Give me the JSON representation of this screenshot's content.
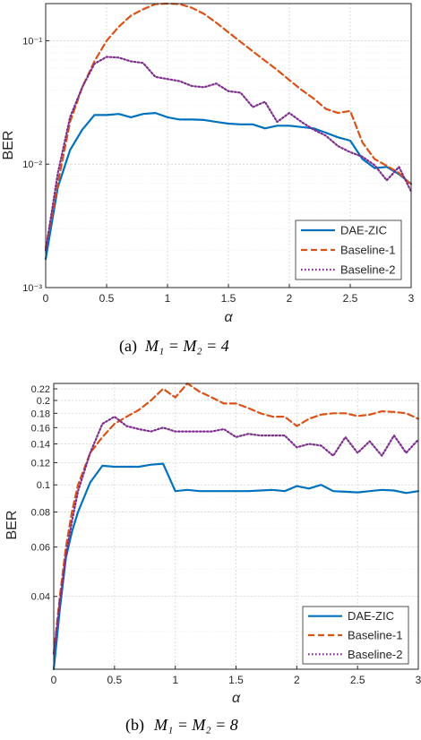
{
  "chart_data": [
    {
      "type": "line",
      "caption_prefix": "(a)",
      "caption_math": "M₁ = M₂ = 4",
      "xlabel": "α",
      "ylabel": "BER",
      "xlim": [
        0,
        3
      ],
      "ylim": [
        0.001,
        0.2
      ],
      "yscale": "log",
      "grid": true,
      "legend_position": "bottom-right",
      "xticks": [
        0,
        0.5,
        1,
        1.5,
        2,
        2.5,
        3
      ],
      "xtick_labels": [
        "0",
        "0.5",
        "1",
        "1.5",
        "2",
        "2.5",
        "3"
      ],
      "yticks": [
        0.001,
        0.01,
        0.1
      ],
      "ytick_labels": [
        "10⁻³",
        "10⁻²",
        "10⁻¹"
      ],
      "x": [
        0,
        0.1,
        0.2,
        0.3,
        0.4,
        0.5,
        0.6,
        0.7,
        0.8,
        0.9,
        1.0,
        1.1,
        1.2,
        1.3,
        1.4,
        1.5,
        1.6,
        1.7,
        1.8,
        1.9,
        2.0,
        2.1,
        2.2,
        2.3,
        2.4,
        2.5,
        2.6,
        2.7,
        2.8,
        2.9,
        3.0
      ],
      "series": [
        {
          "name": "DAE-ZIC",
          "color": "#0072BD",
          "dash": "solid",
          "values": [
            0.0017,
            0.0065,
            0.013,
            0.019,
            0.025,
            0.025,
            0.0255,
            0.024,
            0.0255,
            0.026,
            0.024,
            0.023,
            0.023,
            0.0228,
            0.022,
            0.0213,
            0.021,
            0.021,
            0.0195,
            0.0205,
            0.0205,
            0.02,
            0.0195,
            0.018,
            0.0165,
            0.0155,
            0.011,
            0.0093,
            0.0095,
            0.0083,
            0.0069
          ]
        },
        {
          "name": "Baseline-1",
          "color": "#D95319",
          "dash": "dashed",
          "values": [
            0.0021,
            0.007,
            0.022,
            0.042,
            0.068,
            0.1,
            0.13,
            0.16,
            0.18,
            0.198,
            0.2,
            0.198,
            0.185,
            0.165,
            0.14,
            0.117,
            0.098,
            0.082,
            0.069,
            0.058,
            0.048,
            0.04,
            0.034,
            0.028,
            0.026,
            0.027,
            0.015,
            0.011,
            0.0097,
            0.0085,
            0.0068
          ]
        },
        {
          "name": "Baseline-2",
          "color": "#7E2F8E",
          "dash": "dotted",
          "values": [
            0.002,
            0.0085,
            0.024,
            0.042,
            0.065,
            0.074,
            0.073,
            0.068,
            0.066,
            0.051,
            0.049,
            0.047,
            0.043,
            0.042,
            0.045,
            0.039,
            0.038,
            0.029,
            0.032,
            0.022,
            0.026,
            0.022,
            0.019,
            0.017,
            0.014,
            0.0125,
            0.0115,
            0.0098,
            0.0074,
            0.0095,
            0.006
          ]
        }
      ]
    },
    {
      "type": "line",
      "caption_prefix": "(b)",
      "caption_math": "M₁ = M₂ = 8",
      "xlabel": "α",
      "ylabel": "BER",
      "xlim": [
        0,
        3
      ],
      "ylim": [
        0.022,
        0.23
      ],
      "yscale": "log",
      "grid": true,
      "legend_position": "bottom-right",
      "xticks": [
        0,
        0.5,
        1,
        1.5,
        2,
        2.5,
        3
      ],
      "xtick_labels": [
        "0",
        "0.5",
        "1",
        "1.5",
        "2",
        "2.5",
        "3"
      ],
      "yticks": [
        0.04,
        0.06,
        0.08,
        0.1,
        0.12,
        0.14,
        0.16,
        0.18,
        0.2,
        0.22
      ],
      "ytick_labels": [
        "0.04",
        "0.06",
        "0.08",
        "0.1",
        "0.12",
        "0.14",
        "0.16",
        "0.18",
        "0.2",
        "0.22"
      ],
      "x": [
        0,
        0.05,
        0.1,
        0.15,
        0.2,
        0.3,
        0.4,
        0.5,
        0.6,
        0.7,
        0.8,
        0.9,
        1.0,
        1.1,
        1.2,
        1.3,
        1.4,
        1.5,
        1.6,
        1.7,
        1.8,
        1.9,
        2.0,
        2.1,
        2.2,
        2.3,
        2.4,
        2.5,
        2.6,
        2.7,
        2.8,
        2.9,
        3.0
      ],
      "series": [
        {
          "name": "DAE-ZIC",
          "color": "#0072BD",
          "dash": "solid",
          "values": [
            0.022,
            0.036,
            0.055,
            0.068,
            0.08,
            0.102,
            0.117,
            0.116,
            0.116,
            0.116,
            0.118,
            0.119,
            0.095,
            0.096,
            0.095,
            0.095,
            0.095,
            0.095,
            0.095,
            0.0955,
            0.096,
            0.095,
            0.099,
            0.097,
            0.1,
            0.095,
            0.0945,
            0.094,
            0.095,
            0.096,
            0.0955,
            0.0935,
            0.095
          ]
        },
        {
          "name": "Baseline-1",
          "color": "#D95319",
          "dash": "dashed",
          "values": [
            0.025,
            0.04,
            0.06,
            0.08,
            0.1,
            0.13,
            0.148,
            0.165,
            0.175,
            0.185,
            0.2,
            0.22,
            0.205,
            0.23,
            0.215,
            0.205,
            0.195,
            0.195,
            0.188,
            0.18,
            0.175,
            0.175,
            0.162,
            0.172,
            0.178,
            0.18,
            0.18,
            0.176,
            0.178,
            0.183,
            0.182,
            0.18,
            0.172
          ]
        },
        {
          "name": "Baseline-2",
          "color": "#7E2F8E",
          "dash": "dotted",
          "values": [
            0.025,
            0.038,
            0.056,
            0.074,
            0.095,
            0.13,
            0.165,
            0.175,
            0.162,
            0.158,
            0.155,
            0.16,
            0.155,
            0.155,
            0.155,
            0.155,
            0.158,
            0.148,
            0.152,
            0.15,
            0.15,
            0.15,
            0.136,
            0.14,
            0.138,
            0.127,
            0.148,
            0.13,
            0.143,
            0.127,
            0.15,
            0.13,
            0.145
          ]
        }
      ]
    }
  ]
}
